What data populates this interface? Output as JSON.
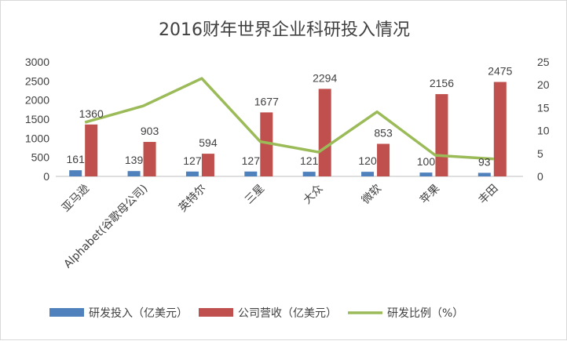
{
  "chart_data": {
    "type": "bar",
    "title": "2016财年世界企业科研投入情况",
    "categories": [
      "亚马逊",
      "Alphabet(谷歌母公司)",
      "英特尔",
      "三星",
      "大众",
      "微软",
      "苹果",
      "丰田"
    ],
    "series": [
      {
        "name": "研发投入（亿美元）",
        "type": "bar",
        "axis": "left",
        "color": "#4f81bd",
        "values": [
          161,
          139,
          127,
          127,
          121,
          120,
          100,
          93
        ]
      },
      {
        "name": "公司营收（亿美元）",
        "type": "bar",
        "axis": "left",
        "color": "#c0504d",
        "values": [
          1360,
          903,
          594,
          1677,
          2294,
          853,
          2156,
          2475
        ]
      },
      {
        "name": "研发比例（%）",
        "type": "line",
        "axis": "right",
        "color": "#9bbb59",
        "values": [
          11.8,
          15.4,
          21.4,
          7.6,
          5.3,
          14.1,
          4.6,
          3.8
        ]
      }
    ],
    "ylim_left": [
      0,
      3000
    ],
    "yticks_left": [
      "0",
      "500",
      "1000",
      "1500",
      "2000",
      "2500",
      "3000"
    ],
    "ylim_right": [
      0,
      25
    ],
    "yticks_right": [
      "0",
      "5",
      "10",
      "15",
      "20",
      "25"
    ],
    "xlabel": "",
    "ylabel": "",
    "grid": false,
    "legend_position": "bottom"
  }
}
